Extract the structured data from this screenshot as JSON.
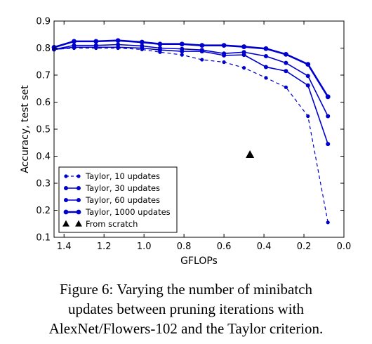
{
  "chart_data": {
    "type": "line",
    "title": "",
    "xlabel": "GFLOPs",
    "ylabel": "Accuracy, test set",
    "xlim": [
      1.45,
      0.0
    ],
    "ylim": [
      0.1,
      0.9
    ],
    "x_reversed": true,
    "xticks": [
      1.4,
      1.2,
      1.0,
      0.8,
      0.6,
      0.4,
      0.2,
      0.0
    ],
    "xtick_labels": [
      "1.4",
      "1.2",
      "1.0",
      "0.8",
      "0.6",
      "0.4",
      "0.2",
      "0.0"
    ],
    "yticks": [
      0.1,
      0.2,
      0.3,
      0.4,
      0.5,
      0.6,
      0.7,
      0.8,
      0.9
    ],
    "ytick_labels": [
      "0.1",
      "0.2",
      "0.3",
      "0.4",
      "0.5",
      "0.6",
      "0.7",
      "0.8",
      "0.9"
    ],
    "grid": false,
    "legend_position": "lower-left",
    "color": "#0000cc",
    "series": [
      {
        "name": "Taylor, 10 updates",
        "style": "dashed",
        "x": [
          1.45,
          1.35,
          1.24,
          1.13,
          1.01,
          0.92,
          0.81,
          0.71,
          0.6,
          0.5,
          0.39,
          0.29,
          0.18,
          0.08
        ],
        "y": [
          0.795,
          0.8,
          0.8,
          0.8,
          0.795,
          0.785,
          0.775,
          0.757,
          0.748,
          0.727,
          0.69,
          0.655,
          0.548,
          0.155
        ]
      },
      {
        "name": "Taylor, 30 updates",
        "style": "solid",
        "x": [
          1.45,
          1.35,
          1.24,
          1.13,
          1.01,
          0.92,
          0.81,
          0.71,
          0.6,
          0.5,
          0.39,
          0.29,
          0.18,
          0.08
        ],
        "y": [
          0.795,
          0.803,
          0.803,
          0.803,
          0.8,
          0.793,
          0.788,
          0.788,
          0.773,
          0.775,
          0.73,
          0.715,
          0.662,
          0.445
        ]
      },
      {
        "name": "Taylor, 60 updates",
        "style": "solid",
        "x": [
          1.45,
          1.35,
          1.24,
          1.13,
          1.01,
          0.92,
          0.81,
          0.71,
          0.6,
          0.5,
          0.39,
          0.29,
          0.18,
          0.08
        ],
        "y": [
          0.795,
          0.81,
          0.81,
          0.813,
          0.808,
          0.8,
          0.797,
          0.793,
          0.78,
          0.785,
          0.77,
          0.745,
          0.697,
          0.548
        ]
      },
      {
        "name": "Taylor, 1000 updates",
        "style": "solid-thick",
        "x": [
          1.45,
          1.35,
          1.24,
          1.13,
          1.01,
          0.92,
          0.81,
          0.71,
          0.6,
          0.5,
          0.39,
          0.29,
          0.18,
          0.08
        ],
        "y": [
          0.803,
          0.825,
          0.825,
          0.828,
          0.822,
          0.815,
          0.815,
          0.81,
          0.81,
          0.805,
          0.798,
          0.777,
          0.74,
          0.62
        ]
      },
      {
        "name": "From scratch",
        "style": "marker-triangle",
        "color": "#000000",
        "x": [
          0.47
        ],
        "y": [
          0.405
        ]
      }
    ]
  },
  "caption": {
    "line1": "Figure 6: Varying the number of minibatch",
    "line2": "updates between pruning iterations with",
    "line3": "AlexNet/Flowers-102 and the Taylor criterion."
  }
}
